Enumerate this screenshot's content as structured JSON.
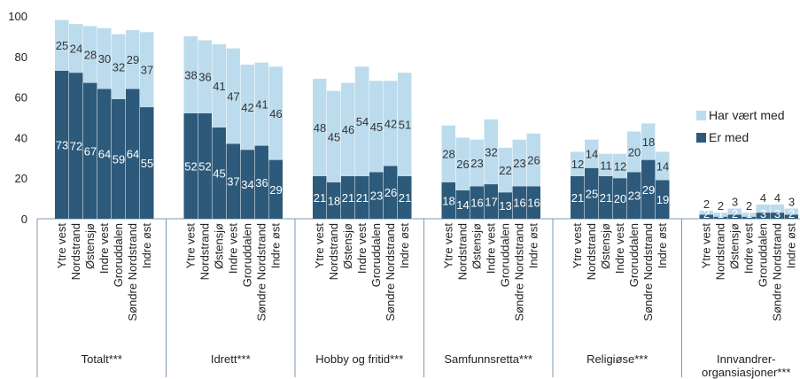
{
  "chart_data": {
    "type": "bar",
    "stacked": true,
    "ylim": [
      0,
      100
    ],
    "yticks": [
      "0",
      "20",
      "40",
      "60",
      "80",
      "100"
    ],
    "districts": [
      "Ytre vest",
      "Nordstrand",
      "Østensjø",
      "Indre vest",
      "Groruddalen",
      "Søndre Nordstrand",
      "Indre øst"
    ],
    "groups": [
      {
        "label": "Totalt***",
        "er_med": [
          73,
          72,
          67,
          64,
          59,
          64,
          55
        ],
        "har_vaert_med": [
          25,
          24,
          28,
          30,
          32,
          29,
          37
        ]
      },
      {
        "label": "Idrett***",
        "er_med": [
          52,
          52,
          45,
          37,
          34,
          36,
          29
        ],
        "har_vaert_med": [
          38,
          36,
          41,
          47,
          42,
          41,
          46
        ]
      },
      {
        "label": "Hobby og fritid***",
        "er_med": [
          21,
          18,
          21,
          21,
          23,
          26,
          21
        ],
        "har_vaert_med": [
          48,
          45,
          46,
          54,
          45,
          42,
          51
        ]
      },
      {
        "label": "Samfunnsretta***",
        "er_med": [
          18,
          14,
          16,
          17,
          13,
          16,
          16
        ],
        "har_vaert_med": [
          28,
          26,
          23,
          32,
          22,
          23,
          26
        ]
      },
      {
        "label": "Religiøse***",
        "er_med": [
          21,
          25,
          21,
          20,
          23,
          29,
          19
        ],
        "har_vaert_med": [
          12,
          14,
          11,
          12,
          20,
          18,
          14
        ]
      },
      {
        "label": [
          "Innvandrer-",
          "organsiasjoner***"
        ],
        "er_med": [
          2,
          1,
          2,
          1,
          3,
          3,
          2
        ],
        "har_vaert_med": [
          2,
          2,
          3,
          2,
          4,
          4,
          3
        ]
      }
    ],
    "series": [
      {
        "name": "Har vært med",
        "color": "#bcdcee"
      },
      {
        "name": "Er med",
        "color": "#2d5a7a"
      }
    ],
    "legend_position": "right",
    "grid": false
  }
}
